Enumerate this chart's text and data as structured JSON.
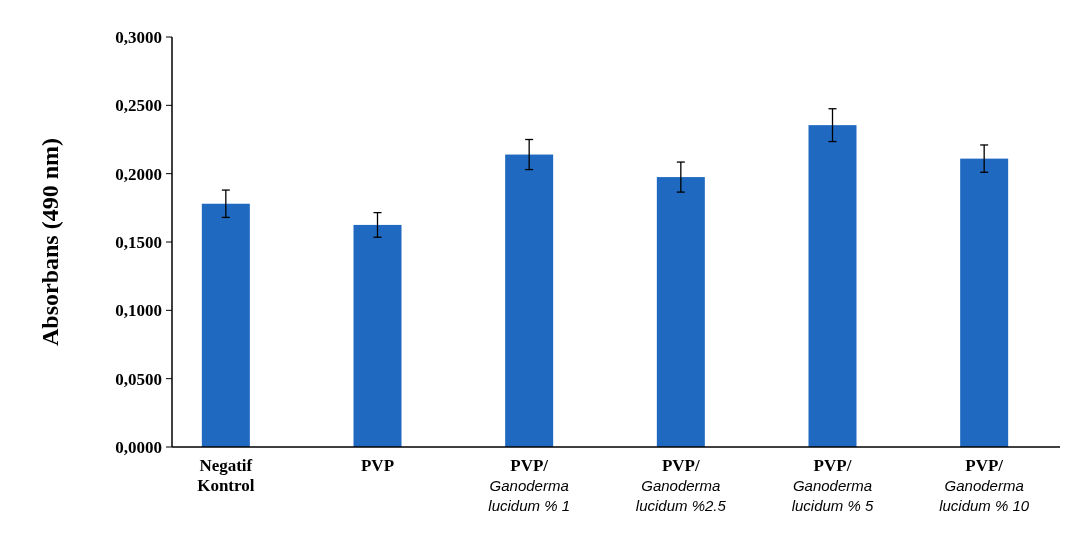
{
  "chart_data": {
    "type": "bar",
    "ylabel": "Absorbans (490 nm)",
    "categories": [
      "Negatif Kontrol",
      "PVP",
      "PVP/Ganoderma lucidum % 1",
      "PVP/Ganoderma lucidum %2.5",
      "PVP/Ganoderma lucidum % 5",
      "PVP/Ganoderma lucidum % 10"
    ],
    "values": [
      0.178,
      0.1625,
      0.214,
      0.1975,
      0.2355,
      0.211
    ],
    "errors": [
      0.01,
      0.009,
      0.011,
      0.011,
      0.012,
      0.01
    ],
    "color": "#1f69c1",
    "ylim": [
      0,
      0.3
    ],
    "yticks": [
      {
        "value": 0,
        "label": "0,0000"
      },
      {
        "value": 0.05,
        "label": "0,0500"
      },
      {
        "value": 0.1,
        "label": "0,1000"
      },
      {
        "value": 0.15,
        "label": "0,1500"
      },
      {
        "value": 0.2,
        "label": "0,2000"
      },
      {
        "value": 0.25,
        "label": "0,2500"
      },
      {
        "value": 0.3,
        "label": "0,3000"
      }
    ],
    "grid": false
  }
}
